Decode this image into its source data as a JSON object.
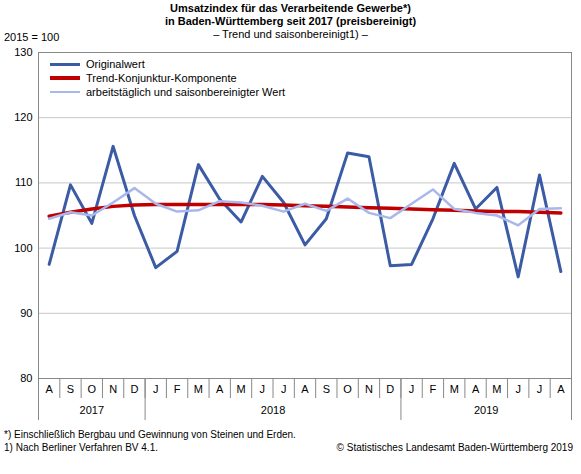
{
  "chart_data": {
    "type": "line",
    "title": [
      "Umsatzindex für das Verarbeitende Gewerbe*)",
      "in Baden-Württemberg seit 2017 (preisbereinigt)"
    ],
    "subtitle": "– Trend und saisonbereinigt1) –",
    "ylabel": "2015 = 100",
    "categories": [
      "A",
      "S",
      "O",
      "N",
      "D",
      "J",
      "F",
      "M",
      "A",
      "M",
      "J",
      "J",
      "A",
      "S",
      "O",
      "N",
      "D",
      "J",
      "F",
      "M",
      "A",
      "M",
      "J",
      "J",
      "A"
    ],
    "x_groups": [
      {
        "label": "2017",
        "count": 5
      },
      {
        "label": "2018",
        "count": 12
      },
      {
        "label": "2019",
        "count": 8
      }
    ],
    "series": [
      {
        "name": "Originalwert",
        "color": "#3b5ba5",
        "values": [
          97.5,
          109.7,
          103.8,
          115.6,
          105.0,
          97.0,
          99.5,
          112.8,
          107.5,
          104.0,
          111.0,
          107.0,
          100.5,
          104.5,
          114.6,
          114.0,
          97.3,
          97.5,
          104.5,
          113.0,
          106.0,
          109.3,
          95.6,
          111.2,
          96.4
        ]
      },
      {
        "name": "Trend-Konjunktur-Komponente",
        "color": "#c00000",
        "values": [
          104.9,
          105.5,
          106.0,
          106.4,
          106.6,
          106.7,
          106.7,
          106.7,
          106.7,
          106.7,
          106.7,
          106.6,
          106.5,
          106.4,
          106.3,
          106.2,
          106.1,
          106.0,
          105.9,
          105.8,
          105.7,
          105.6,
          105.6,
          105.5,
          105.4
        ]
      },
      {
        "name": "arbeitstäglich und saisonbereinigter Wert",
        "color": "#a9b7ec",
        "values": [
          104.5,
          105.5,
          105.0,
          107.0,
          109.2,
          106.8,
          105.6,
          105.8,
          107.2,
          107.0,
          106.5,
          105.6,
          106.8,
          105.7,
          107.6,
          105.4,
          104.6,
          106.8,
          109.0,
          106.0,
          105.4,
          105.0,
          103.5,
          106.0,
          106.1
        ]
      }
    ],
    "ylim": [
      80,
      130
    ],
    "yticks": [
      80,
      90,
      100,
      110,
      120,
      130
    ],
    "grid": true,
    "legend": "top-left",
    "notes": [
      "*) Einschließlich Bergbau und Gewinnung von Steinen und Erden.",
      "1) Nach Berliner Verfahren BV 4.1."
    ],
    "source": "© Statistisches Landesamt Baden-Württemberg 2019"
  }
}
